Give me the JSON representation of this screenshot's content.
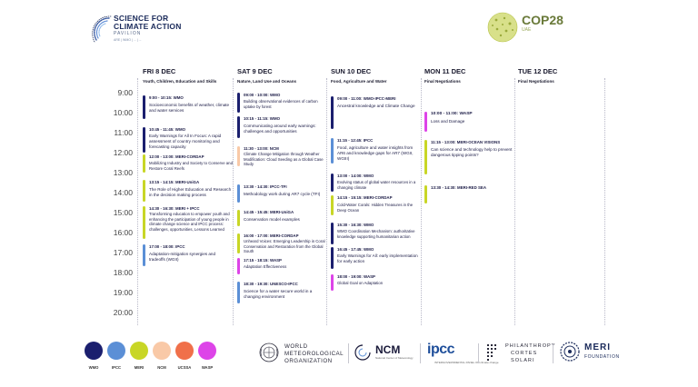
{
  "header": {
    "sfca": {
      "line1": "SCIENCE FOR",
      "line2": "CLIMATE ACTION",
      "line3": "PAVILION",
      "line4": "ARE | WMO | ... | ..."
    },
    "cop": {
      "title": "COP28",
      "subtitle": "UAE"
    }
  },
  "times": [
    "9:00",
    "10:00",
    "11:00",
    "12:00",
    "13:00",
    "14:00",
    "15:00",
    "16:00",
    "17:00",
    "18:00",
    "19:00",
    "20:00"
  ],
  "colors": {
    "wmo": "#1b1f6e",
    "ipcc": "#5b8fd6",
    "meri": "#c8d626",
    "ncm": "#f9c9a7",
    "ucssa": "#f0704a",
    "wasp": "#dd44e8"
  },
  "days": [
    {
      "title": "FRI 8 DEC",
      "subtitle": "Youth, Children, Education and Skills",
      "events": [
        {
          "time": "9:00 - 10:15:  WMO",
          "desc": "Socioeconomic benefits of weather, climate and water services",
          "org": "wmo"
        },
        {
          "time": "10:45 - 11:45: WMO",
          "desc": "Early Warnings for All In Focus: A rapid assessment of country monitoring and forecasting capacity",
          "org": "wmo"
        },
        {
          "time": "12:00 - 13:00: MERI-CORDAP",
          "desc": "Mobilizing Industry and Society to Conserve and Restore Coral Reefs",
          "org": "meri"
        },
        {
          "time": "13:15 - 14:15:   MERI-UniGA",
          "desc": "The Role of Higher Education and Research in the decision making process",
          "org": "meri"
        },
        {
          "time": "14:30 - 16:30: MERI + IPCC",
          "desc": "Transforming education to empower youth and enhancing the participation of young people in climate change science and IPCC process: challenges, opportunities, Lessons Learned",
          "org": "meri"
        },
        {
          "time": "17:00 - 18:00: IPCC",
          "desc": "Adaptation-mitigation synergies and tradeoffs (WGII)",
          "org": "ipcc"
        }
      ]
    },
    {
      "title": "SAT 9 DEC",
      "subtitle": "Nature, Land Use and Oceans",
      "events": [
        {
          "time": "09:00 - 10:00: WMO",
          "desc": "Building observational evidences of carbon uptake by forest",
          "org": "wmo"
        },
        {
          "time": "10:15 - 11:15:  WMO",
          "desc": "Communicating around early warnings: challenges and opportunities",
          "org": "wmo"
        },
        {
          "time": "11:30 - 13:00: NCM",
          "desc": "Climate Change Mitigation through Weather Modification: Cloud Seeding as a Global Case Study",
          "org": "ncm"
        },
        {
          "time": "13:30 - 14:30:  IPCC-TFI",
          "desc": "Methodology work during AR7 cycle (TFI)",
          "org": "ipcc"
        },
        {
          "time": "14:45 - 15:45: MERI-UniGA",
          "desc": "Conservation model examples",
          "org": "meri"
        },
        {
          "time": "16:00 - 17:00: MERI-CORDAP",
          "desc": "Unheard Voices: Emerging Leadership in Coral Conservation and Restoration from the Global South",
          "org": "meri"
        },
        {
          "time": "17:15 - 18:15: WASP",
          "desc": "Adaptation Effectiveness",
          "org": "wasp"
        },
        {
          "time": "18:30 - 19:30:  UNESCO-IPCC",
          "desc": "Science for a water secure world in a changing environment",
          "org": "ipcc"
        }
      ]
    },
    {
      "title": "SUN 10 DEC",
      "subtitle": "Food, Agriculture and Water",
      "events": [
        {
          "time": "09:00 - 11:00:  WMO-IPCC-MERI",
          "desc": "Ancestral knowledge and Climate Change",
          "org": "wmo"
        },
        {
          "time": "11:15 - 12:45:  IPCC",
          "desc": "Food, agriculture and water insights from AR6 and knowledge gaps for AR7 (WGII, WGIII)",
          "org": "ipcc"
        },
        {
          "time": "13:00 - 14:00: WMO",
          "desc": "Evolving status of global water resources in a changing climate",
          "org": "wmo"
        },
        {
          "time": "14:15 - 15:15: MERI-CORDAP",
          "desc": "Cold-Water Corals: Hidden Treasures in the Deep Ocean",
          "org": "meri"
        },
        {
          "time": "15:30 - 16:30: WMO",
          "desc": "WMO Coordination Mechanism: authoritative knowledge supporting humanitarian action",
          "org": "wmo"
        },
        {
          "time": "16:45 - 17:45: WMO",
          "desc": "Early Warnings for All: early implementation for early action",
          "org": "wmo"
        },
        {
          "time": "18:00 - 19:00: WASP",
          "desc": "Global Goal on Adaptation",
          "org": "wasp"
        }
      ]
    },
    {
      "title": "MON 11 DEC",
      "subtitle": "Final Negotiations",
      "events": [
        {
          "time": "10:00 - 11:00: WASP",
          "desc": "Loss and Damage",
          "org": "wasp"
        },
        {
          "time": "11:15 - 13:00: MERI-OCEAN VISIONS",
          "desc": "Can science and technology help to prevent dangerous tipping points?",
          "org": "meri"
        },
        {
          "time": "13:30 - 14:30: MERI-RED SEA",
          "desc": "",
          "org": "meri"
        }
      ]
    },
    {
      "title": "TUE 12 DEC",
      "subtitle": "Final Negotiations",
      "events": []
    }
  ],
  "legend": [
    {
      "label": "WMO",
      "color": "#1b1f6e"
    },
    {
      "label": "IPCC",
      "color": "#5b8fd6"
    },
    {
      "label": "MERI",
      "color": "#c8d626"
    },
    {
      "label": "NCM",
      "color": "#f9c9a7"
    },
    {
      "label": "UCSSA",
      "color": "#f0704a"
    },
    {
      "label": "WASP",
      "color": "#dd44e8"
    }
  ],
  "partners": {
    "wmo": {
      "line1": "WORLD",
      "line2": "METEOROLOGICAL",
      "line3": "ORGANIZATION"
    },
    "ncm": {
      "name": "NCM",
      "sub": "National Center of Meteorology"
    },
    "ipcc": {
      "name": "ipcc",
      "sub": "INTERGOVERNMENTAL PANEL ON climate change"
    },
    "philanthropy": {
      "line1": "PHILANTHROPY",
      "line2": "CORTES",
      "line3": "SOLARI"
    },
    "meri": {
      "name": "MERI",
      "sub": "FOUNDATION"
    }
  }
}
